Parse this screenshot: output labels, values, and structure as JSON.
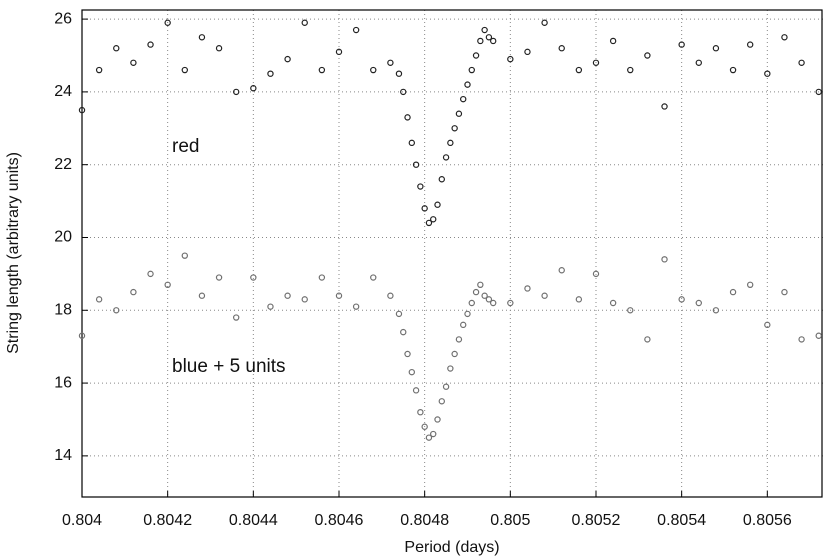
{
  "chart_data": {
    "type": "scatter",
    "x_label": "Period (days)",
    "y_label": "String length (arbitrary units)",
    "xlim": [
      0.804,
      0.80573
    ],
    "ylim": [
      12.87,
      26.25
    ],
    "xticks": [
      0.804,
      0.8042,
      0.8044,
      0.8046,
      0.8048,
      0.805,
      0.8052,
      0.8054,
      0.8056
    ],
    "yticks": [
      14,
      16,
      18,
      20,
      22,
      24,
      26
    ],
    "grid": true,
    "x": [
      0.804,
      0.80404,
      0.80408,
      0.80412,
      0.80416,
      0.8042,
      0.80424,
      0.80428,
      0.80432,
      0.80436,
      0.8044,
      0.80444,
      0.80448,
      0.80452,
      0.80456,
      0.8046,
      0.80464,
      0.80468,
      0.80472,
      0.80474,
      0.80475,
      0.80476,
      0.80477,
      0.80478,
      0.80479,
      0.8048,
      0.80481,
      0.80482,
      0.80483,
      0.80484,
      0.80485,
      0.80486,
      0.80487,
      0.80488,
      0.80489,
      0.8049,
      0.80491,
      0.80492,
      0.80493,
      0.80494,
      0.80495,
      0.80496,
      0.805,
      0.80504,
      0.80508,
      0.80512,
      0.80516,
      0.8052,
      0.80524,
      0.80528,
      0.80532,
      0.80536,
      0.8054,
      0.80544,
      0.80548,
      0.80552,
      0.80556,
      0.8056,
      0.80564,
      0.80568,
      0.80572
    ],
    "series": [
      {
        "name": "red",
        "color": "#222222",
        "values": [
          23.5,
          24.6,
          25.2,
          24.8,
          25.3,
          25.9,
          24.6,
          25.5,
          25.2,
          24.0,
          24.1,
          24.5,
          24.9,
          25.9,
          24.6,
          25.1,
          25.7,
          24.6,
          24.8,
          24.5,
          24.0,
          23.3,
          22.6,
          22.0,
          21.4,
          20.8,
          20.4,
          20.5,
          20.9,
          21.6,
          22.2,
          22.6,
          23.0,
          23.4,
          23.8,
          24.2,
          24.6,
          25.0,
          25.4,
          25.7,
          25.5,
          25.4,
          24.9,
          25.1,
          25.9,
          25.2,
          24.6,
          24.8,
          25.4,
          24.6,
          25.0,
          23.6,
          25.3,
          24.8,
          25.2,
          24.6,
          25.3,
          24.5,
          25.5,
          24.8,
          24.0
        ]
      },
      {
        "name": "blue + 5 units",
        "color": "#707070",
        "values": [
          17.3,
          18.3,
          18.0,
          18.5,
          19.0,
          18.7,
          19.5,
          18.4,
          18.9,
          17.8,
          18.9,
          18.1,
          18.4,
          18.3,
          18.9,
          18.4,
          18.1,
          18.9,
          18.4,
          17.9,
          17.4,
          16.8,
          16.3,
          15.8,
          15.2,
          14.8,
          14.5,
          14.6,
          15.0,
          15.5,
          15.9,
          16.4,
          16.8,
          17.2,
          17.6,
          17.9,
          18.2,
          18.5,
          18.7,
          18.4,
          18.3,
          18.2,
          18.2,
          18.6,
          18.4,
          19.1,
          18.3,
          19.0,
          18.2,
          18.0,
          17.2,
          19.4,
          18.3,
          18.2,
          18.0,
          18.5,
          18.7,
          17.6,
          18.5,
          17.2,
          17.3
        ]
      }
    ]
  }
}
